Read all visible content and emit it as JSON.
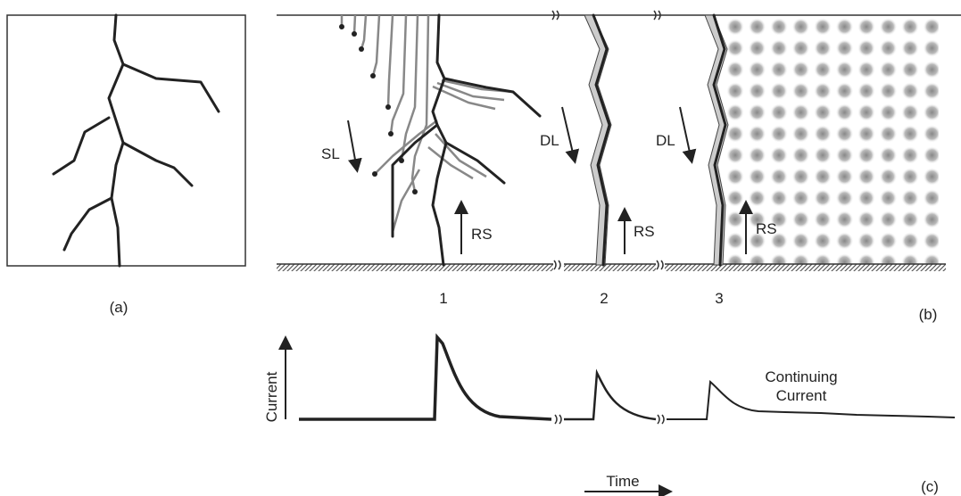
{
  "panel_a": {
    "label": "(a)"
  },
  "panel_b": {
    "label": "(b)",
    "strokes": [
      {
        "number": "1",
        "leader": "SL",
        "return": "RS"
      },
      {
        "number": "2",
        "leader": "DL",
        "return": "RS"
      },
      {
        "number": "3",
        "leader": "DL",
        "return": "RS"
      }
    ]
  },
  "panel_c": {
    "label": "(c)",
    "y_axis": "Current",
    "x_axis": "Time",
    "annotation": [
      "Continuing",
      "Current"
    ]
  }
}
